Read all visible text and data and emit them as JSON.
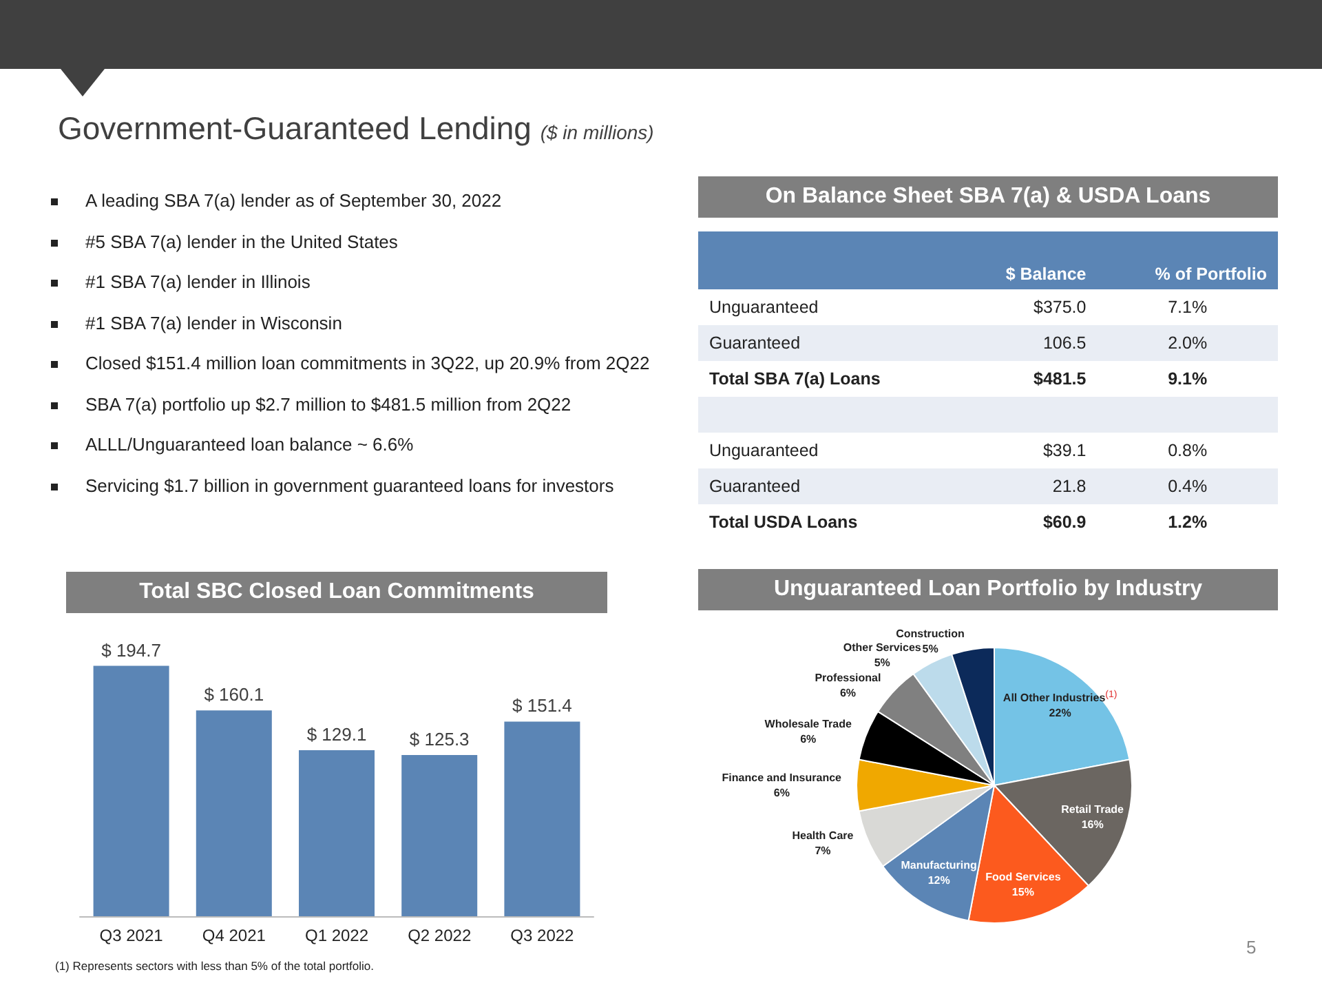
{
  "chart_data": [
    {
      "type": "other",
      "title": "Government-Guaranteed Lending",
      "subtitle": "($ in millions)",
      "annotations": [
        "A leading SBA 7(a) lender as of September 30, 2022",
        "#5 SBA 7(a) lender in the United States",
        "#1 SBA 7(a) lender in Illinois",
        "#1 SBA 7(a) lender in Wisconsin",
        "Closed $151.4 million loan commitments in 3Q22, up 20.9% from 2Q22",
        "SBA 7(a) portfolio up $2.7 million to $481.5 million from 2Q22",
        "ALLL/Unguaranteed loan balance ~ 6.6%",
        "Servicing $1.7 billion in government guaranteed loans for investors",
        "5"
      ]
    },
    {
      "type": "other",
      "title": "On Balance Sheet SBA 7(a) & USDA Loans",
      "categories": [
        "$ Balance",
        "% of Portfolio"
      ],
      "y_categories": [
        "Unguaranteed",
        "Guaranteed",
        "Total SBA 7(a) Loans",
        null,
        "Unguaranteed",
        "Guaranteed",
        "Total USDA Loans"
      ],
      "cell_labels": [
        [
          "$375.0",
          "7.1%"
        ],
        [
          "106.5",
          "2.0%"
        ],
        [
          "$481.5",
          "9.1%"
        ],
        null,
        [
          "$39.1",
          "0.8%"
        ],
        [
          "21.8",
          "0.4%"
        ],
        [
          "$60.9",
          "1.2%"
        ]
      ]
    },
    {
      "type": "bar",
      "title": "Total SBC Closed Loan Commitments",
      "categories": [
        "Q3 2021",
        "Q4 2021",
        "Q1 2022",
        "Q2 2022",
        "Q3 2022"
      ],
      "values": [
        194.7,
        160.1,
        129.1,
        125.3,
        151.4
      ],
      "value_labels": [
        "$ 194.7",
        "$ 160.1",
        "$ 129.1",
        "$ 125.3",
        "$ 151.4"
      ],
      "color": "#5b85b5",
      "grid": false,
      "legend": false
    },
    {
      "type": "pie",
      "title": "Unguaranteed Loan Portfolio by Industry",
      "categories": [
        "All Other Industries$^{(1)}$",
        "Retail Trade",
        "Food Services",
        "Manufacturing",
        "Health Care",
        "Finance and Insurance",
        "Wholesale Trade",
        "Professional",
        "Other Services",
        "Construction"
      ],
      "values": [
        22,
        16,
        15,
        12,
        7,
        6,
        6,
        6,
        5,
        5
      ],
      "value_labels": [
        "22%",
        "16%",
        "15%",
        "12%",
        "7%",
        "6%",
        "6%",
        "6%",
        "5%",
        "5%"
      ],
      "colors": [
        "#74c3e6",
        "#6b6661",
        "#fc5a1e",
        "#5b85b5",
        "#d9d9d6",
        "#f0a800",
        "#000000",
        "#808080",
        "#bcdbeb",
        "#0c2a5a"
      ],
      "legend": false,
      "annotations": [
        "(1) Represents sectors with less than 5% of the total portfolio."
      ]
    }
  ]
}
